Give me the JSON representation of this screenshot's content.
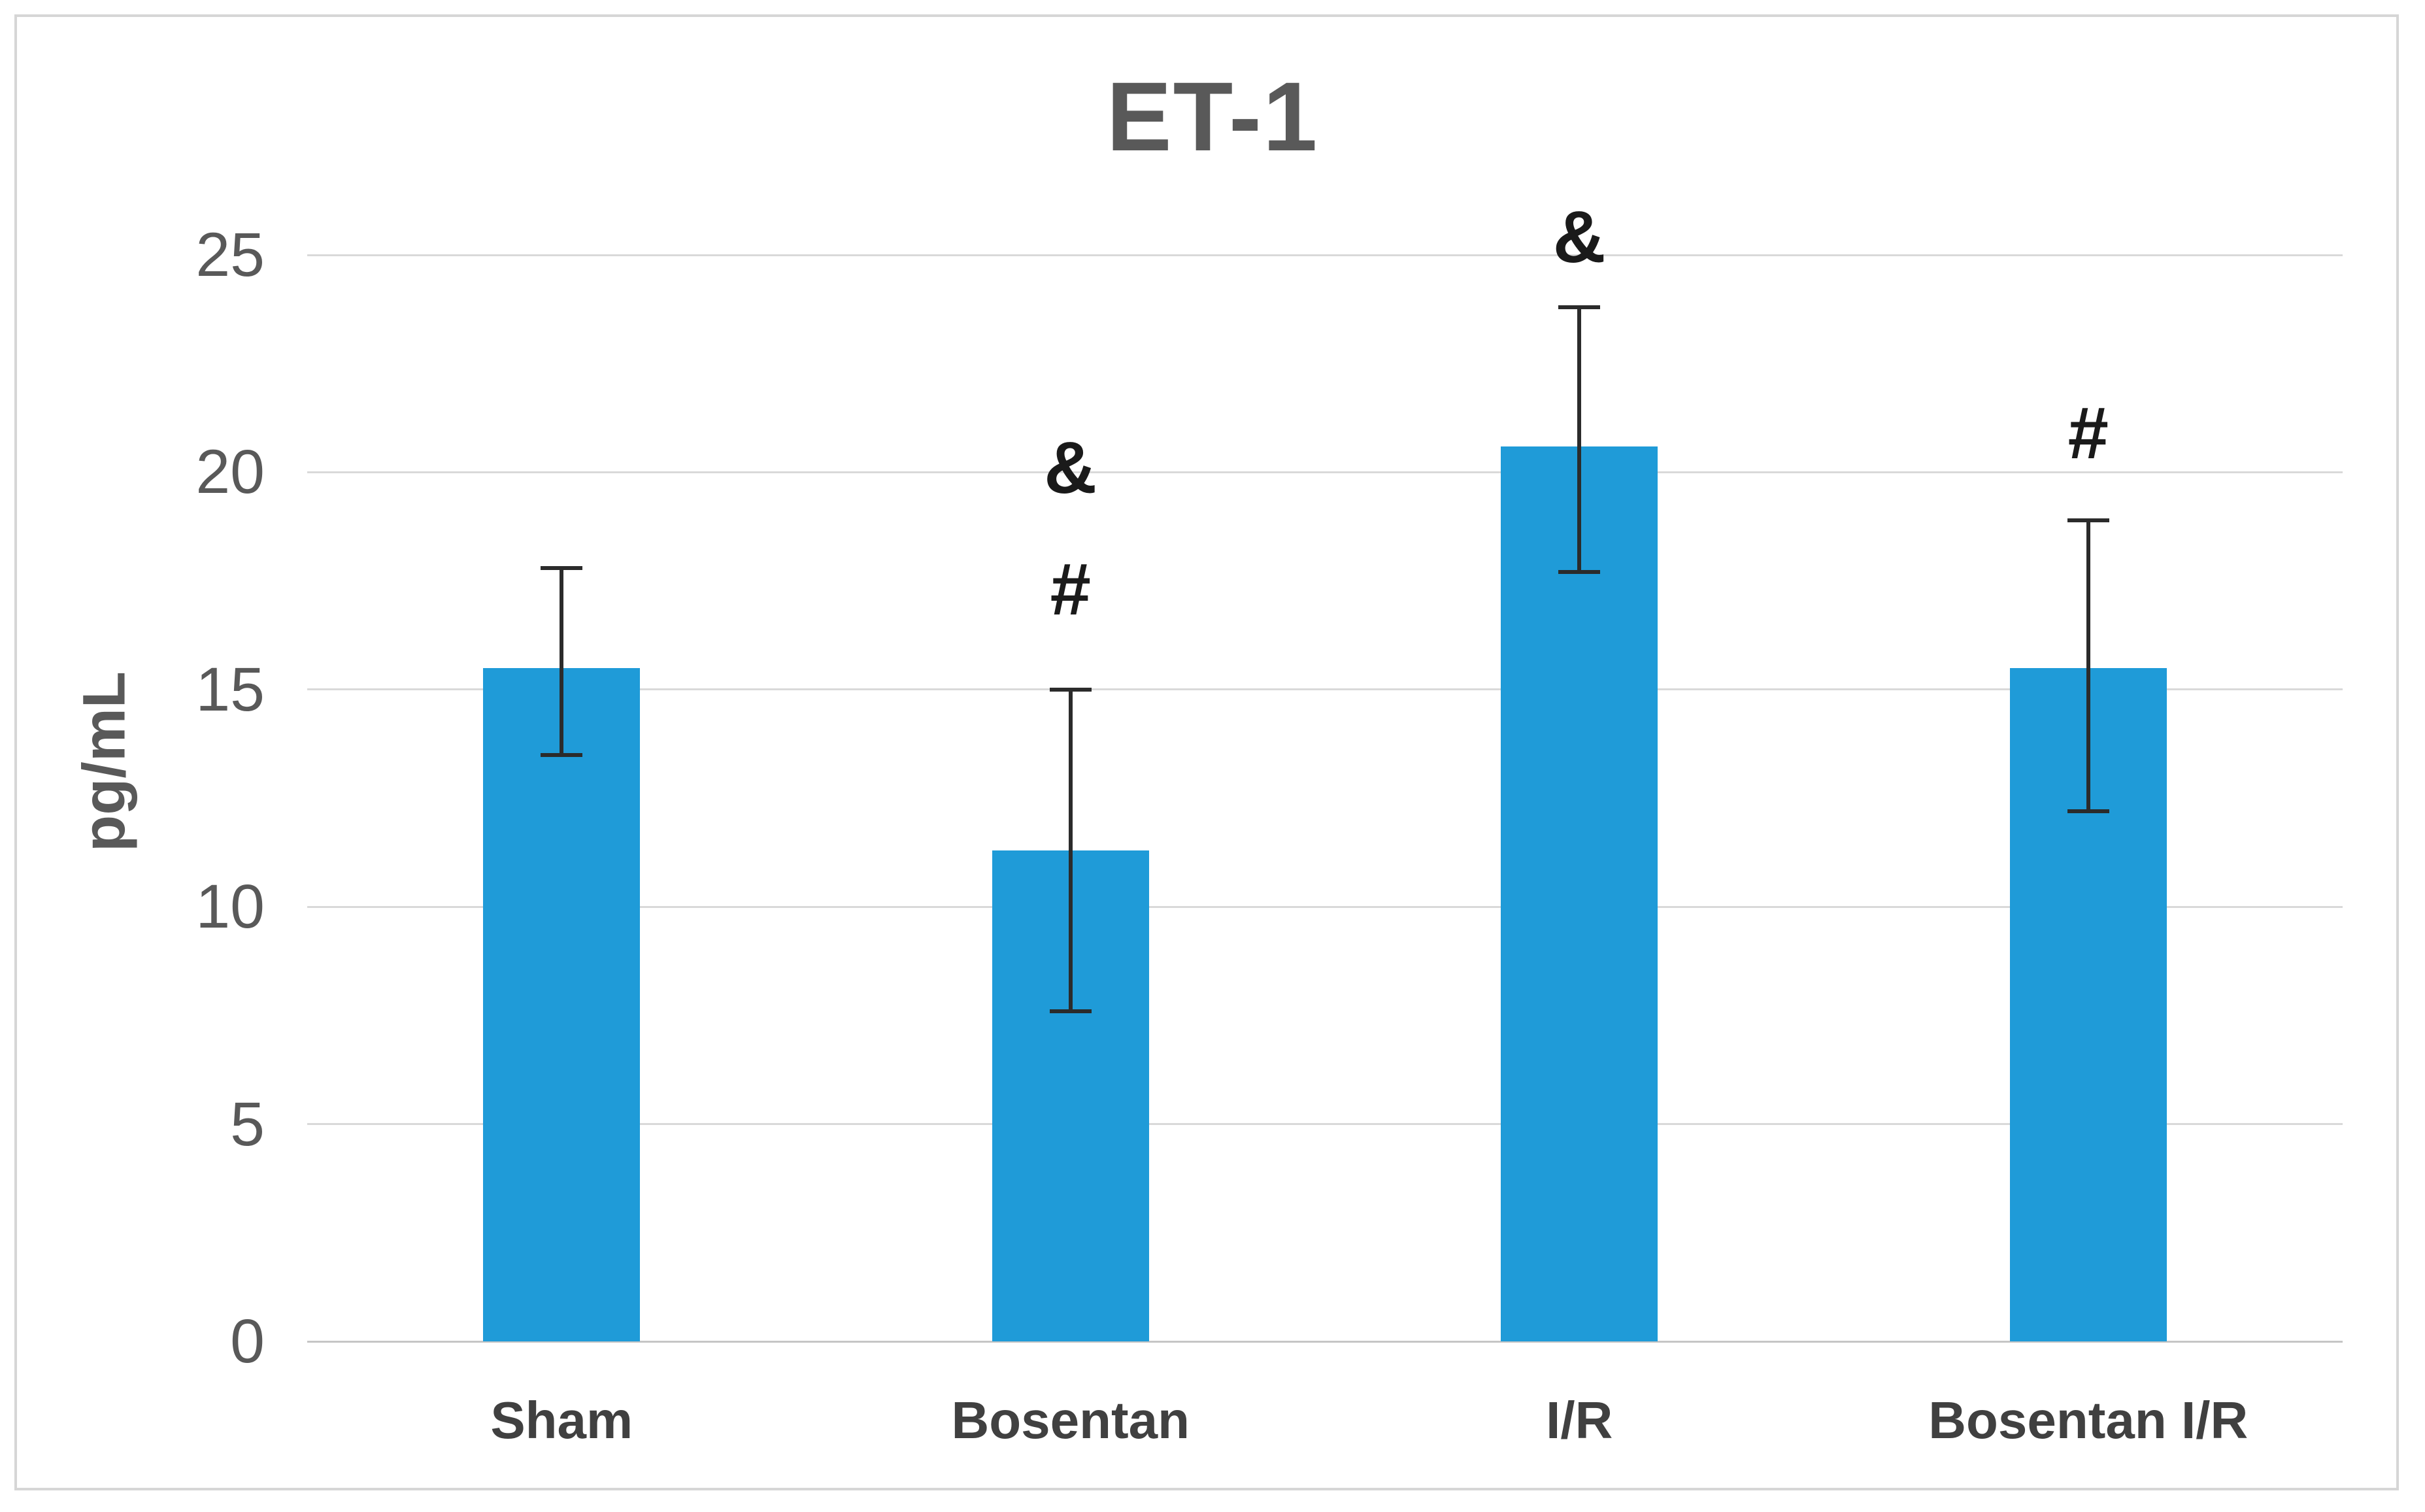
{
  "figure": {
    "background_color": "#FFFFFF",
    "border_color": "#D6D6D6"
  },
  "chart_data": {
    "type": "bar",
    "title": "ET-1",
    "xlabel": "",
    "ylabel": "pg/mL",
    "categories": [
      "Sham",
      "Bosentan",
      "I/R",
      "Bosentan I/R"
    ],
    "values": [
      15.5,
      11.3,
      20.6,
      15.5
    ],
    "error_bar_top": [
      17.8,
      15.0,
      23.8,
      18.9
    ],
    "error_bar_bottom": [
      13.5,
      7.6,
      17.7,
      12.2
    ],
    "ylim": [
      0,
      25
    ],
    "yticks": [
      0,
      5,
      10,
      15,
      20,
      25
    ],
    "ytick_labels": [
      "0",
      "5",
      "10",
      "15",
      "20",
      "25"
    ],
    "grid": true,
    "legend": false,
    "bar_color": "#1F9BD8",
    "gridline_color": "#D9D9D9",
    "axis_line_color": "#C6C6C6",
    "error_bar_color": "#2B2B2B",
    "title_color": "#595959",
    "tick_label_color": "#595959",
    "category_label_color": "#404040",
    "annotation_color": "#1A1A1A",
    "annotations": [
      {
        "category": "Bosentan",
        "category_index": 1,
        "symbols": [
          {
            "text": "&",
            "y": 20.1
          },
          {
            "text": "#",
            "y": 17.3
          }
        ]
      },
      {
        "category": "I/R",
        "category_index": 2,
        "symbols": [
          {
            "text": "&",
            "y": 25.4
          }
        ]
      },
      {
        "category": "Bosentan I/R",
        "category_index": 3,
        "symbols": [
          {
            "text": "#",
            "y": 20.9
          }
        ]
      }
    ]
  }
}
